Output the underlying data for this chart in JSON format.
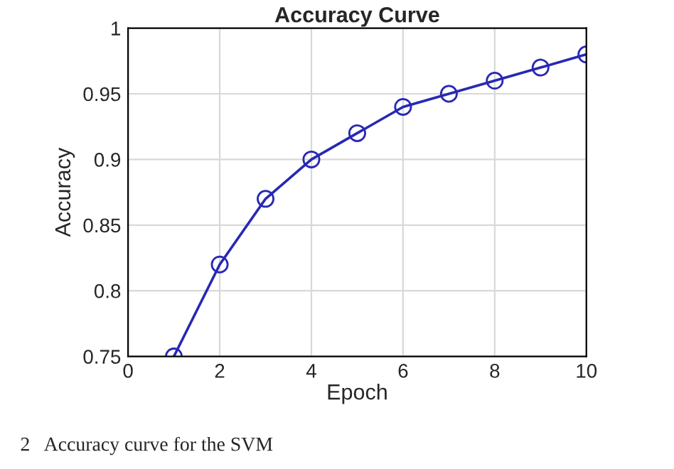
{
  "chart_data": {
    "type": "line",
    "title": "Accuracy Curve",
    "xlabel": "Epoch",
    "ylabel": "Accuracy",
    "x": [
      1,
      2,
      3,
      4,
      5,
      6,
      7,
      8,
      9,
      10
    ],
    "series": [
      {
        "color": "#2828b4",
        "values": [
          0.75,
          0.82,
          0.87,
          0.9,
          0.92,
          0.94,
          0.95,
          0.96,
          0.97,
          0.98
        ]
      }
    ],
    "xlim": [
      0,
      10
    ],
    "xticks": [
      0,
      2,
      4,
      6,
      8,
      10
    ],
    "ylim": [
      0.75,
      1
    ],
    "yticks": [
      0.75,
      0.8,
      0.85,
      0.9,
      0.95,
      1
    ],
    "grid": true,
    "marker": "circle",
    "line_style": "solid",
    "annotations": [
      "2   Accuracy curve for the SVM"
    ]
  }
}
